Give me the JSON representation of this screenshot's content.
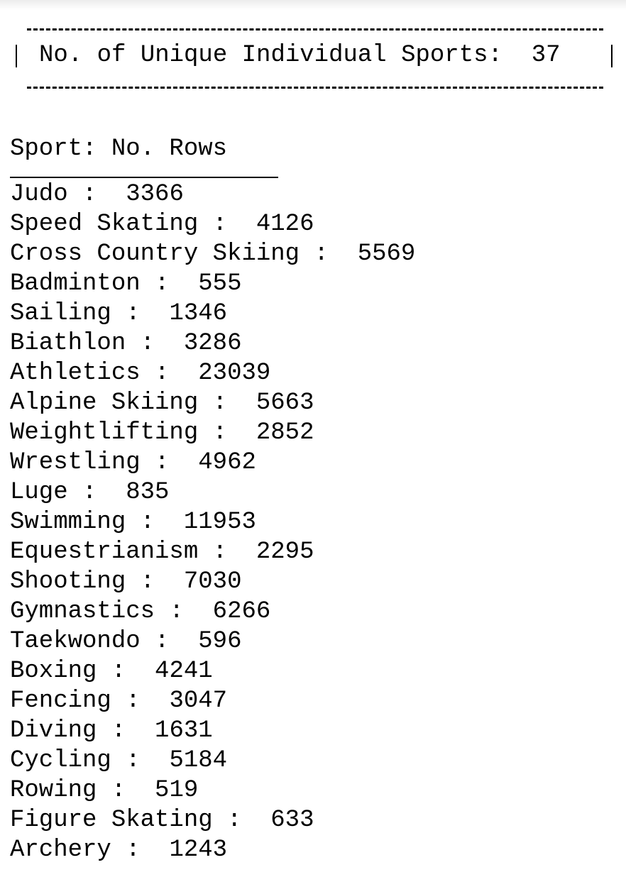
{
  "summary": {
    "label": "No. of Unique Individual Sports:",
    "count": "37"
  },
  "table": {
    "header": "Sport: No. Rows",
    "rows": [
      {
        "sport": "Judo",
        "count": "3366"
      },
      {
        "sport": "Speed Skating",
        "count": "4126"
      },
      {
        "sport": "Cross Country Skiing",
        "count": "5569"
      },
      {
        "sport": "Badminton",
        "count": "555"
      },
      {
        "sport": "Sailing",
        "count": "1346"
      },
      {
        "sport": "Biathlon",
        "count": "3286"
      },
      {
        "sport": "Athletics",
        "count": "23039"
      },
      {
        "sport": "Alpine Skiing",
        "count": "5663"
      },
      {
        "sport": "Weightlifting",
        "count": "2852"
      },
      {
        "sport": "Wrestling",
        "count": "4962"
      },
      {
        "sport": "Luge",
        "count": "835"
      },
      {
        "sport": "Swimming",
        "count": "11953"
      },
      {
        "sport": "Equestrianism",
        "count": "2295"
      },
      {
        "sport": "Shooting",
        "count": "7030"
      },
      {
        "sport": "Gymnastics",
        "count": "6266"
      },
      {
        "sport": "Taekwondo",
        "count": "596"
      },
      {
        "sport": "Boxing",
        "count": "4241"
      },
      {
        "sport": "Fencing",
        "count": "3047"
      },
      {
        "sport": "Diving",
        "count": "1631"
      },
      {
        "sport": "Cycling",
        "count": "5184"
      },
      {
        "sport": "Rowing",
        "count": "519"
      },
      {
        "sport": "Figure Skating",
        "count": "633"
      },
      {
        "sport": "Archery",
        "count": "1243"
      }
    ]
  }
}
